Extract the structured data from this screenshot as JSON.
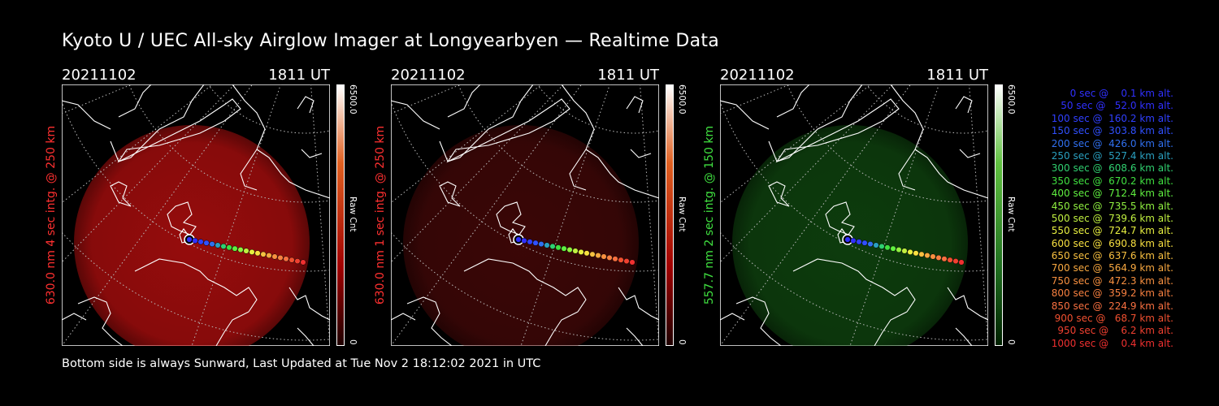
{
  "title": "Kyoto U / UEC All-sky Airglow Imager at Longyearbyen — Realtime Data",
  "footer": "Bottom side is always Sunward, Last Updated at Tue Nov  2 18:12:02 2021 in UTC",
  "panels": [
    {
      "date": "20211102",
      "time": "1811 UT",
      "ylabel": "630.0 nm 4 sec intg. @ 250 km",
      "label_color": "#ff3030",
      "glow_color": "#c81010",
      "glow_opacity": 0.75,
      "cb_top": "#ffffff",
      "cb_mid": "#e06020",
      "cb_mid2": "#a00000",
      "cb_bottom": "#200000",
      "cb_max": "6500.0",
      "cb_min": "0",
      "cb_unit": "Raw Cnt"
    },
    {
      "date": "20211102",
      "time": "1811 UT",
      "ylabel": "630.0 nm 1 sec intg. @ 250 km",
      "label_color": "#ff3030",
      "glow_color": "#6a0c0c",
      "glow_opacity": 0.55,
      "cb_top": "#ffffff",
      "cb_mid": "#e06020",
      "cb_mid2": "#a00000",
      "cb_bottom": "#200000",
      "cb_max": "6500.0",
      "cb_min": "0",
      "cb_unit": "Raw Cnt"
    },
    {
      "date": "20211102",
      "time": "1811 UT",
      "ylabel": "557.7 nm 2 sec intg. @ 150 km",
      "label_color": "#40e040",
      "glow_color": "#145c14",
      "glow_opacity": 0.65,
      "cb_top": "#ffffff",
      "cb_mid": "#60c040",
      "cb_mid2": "#207020",
      "cb_bottom": "#002000",
      "cb_max": "6500.0",
      "cb_min": "0",
      "cb_unit": "Raw Cnt"
    }
  ],
  "legend": [
    {
      "text": "   0 sec @    0.1 km alt.",
      "color": "#3030ff"
    },
    {
      "text": "  50 sec @   52.0 km alt.",
      "color": "#3030ff"
    },
    {
      "text": " 100 sec @  160.2 km alt.",
      "color": "#3040ff"
    },
    {
      "text": " 150 sec @  303.8 km alt.",
      "color": "#3050ff"
    },
    {
      "text": " 200 sec @  426.0 km alt.",
      "color": "#3070f0"
    },
    {
      "text": " 250 sec @  527.4 km alt.",
      "color": "#2aa0c0"
    },
    {
      "text": " 300 sec @  608.6 km alt.",
      "color": "#30d070"
    },
    {
      "text": " 350 sec @  670.2 km alt.",
      "color": "#40e040"
    },
    {
      "text": " 400 sec @  712.4 km alt.",
      "color": "#60f040"
    },
    {
      "text": " 450 sec @  735.5 km alt.",
      "color": "#90f040"
    },
    {
      "text": " 500 sec @  739.6 km alt.",
      "color": "#c0f040"
    },
    {
      "text": " 550 sec @  724.7 km alt.",
      "color": "#e8f040"
    },
    {
      "text": " 600 sec @  690.8 km alt.",
      "color": "#f8e040"
    },
    {
      "text": " 650 sec @  637.6 km alt.",
      "color": "#f8c040"
    },
    {
      "text": " 700 sec @  564.9 km alt.",
      "color": "#f8a840"
    },
    {
      "text": " 750 sec @  472.3 km alt.",
      "color": "#f89040"
    },
    {
      "text": " 800 sec @  359.2 km alt.",
      "color": "#f88040"
    },
    {
      "text": " 850 sec @  224.9 km alt.",
      "color": "#f87040"
    },
    {
      "text": " 900 sec @   68.7 km alt.",
      "color": "#f05030"
    },
    {
      "text": " 950 sec @    6.2 km alt.",
      "color": "#f04030"
    },
    {
      "text": "1000 sec @    0.4 km alt.",
      "color": "#f03030"
    }
  ]
}
